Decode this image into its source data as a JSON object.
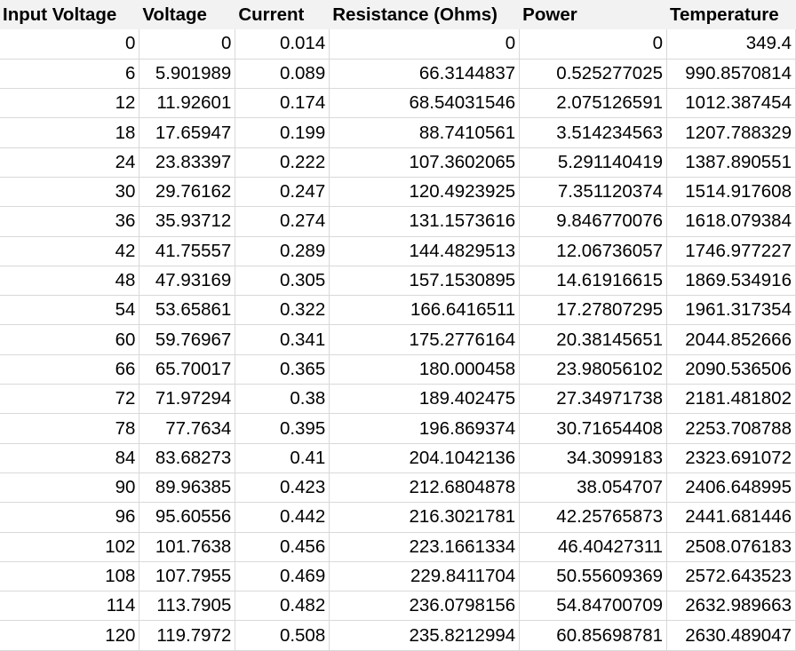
{
  "table": {
    "headers": [
      "Input Voltage",
      "Voltage",
      "Current",
      "Resistance (Ohms)",
      "Power",
      "Temperature"
    ],
    "rows": [
      [
        "0",
        "0",
        "0.014",
        "0",
        "0",
        "349.4"
      ],
      [
        "6",
        "5.901989",
        "0.089",
        "66.3144837",
        "0.525277025",
        "990.8570814"
      ],
      [
        "12",
        "11.92601",
        "0.174",
        "68.54031546",
        "2.075126591",
        "1012.387454"
      ],
      [
        "18",
        "17.65947",
        "0.199",
        "88.7410561",
        "3.514234563",
        "1207.788329"
      ],
      [
        "24",
        "23.83397",
        "0.222",
        "107.3602065",
        "5.291140419",
        "1387.890551"
      ],
      [
        "30",
        "29.76162",
        "0.247",
        "120.4923925",
        "7.351120374",
        "1514.917608"
      ],
      [
        "36",
        "35.93712",
        "0.274",
        "131.1573616",
        "9.846770076",
        "1618.079384"
      ],
      [
        "42",
        "41.75557",
        "0.289",
        "144.4829513",
        "12.06736057",
        "1746.977227"
      ],
      [
        "48",
        "47.93169",
        "0.305",
        "157.1530895",
        "14.61916615",
        "1869.534916"
      ],
      [
        "54",
        "53.65861",
        "0.322",
        "166.6416511",
        "17.27807295",
        "1961.317354"
      ],
      [
        "60",
        "59.76967",
        "0.341",
        "175.2776164",
        "20.38145651",
        "2044.852666"
      ],
      [
        "66",
        "65.70017",
        "0.365",
        "180.000458",
        "23.98056102",
        "2090.536506"
      ],
      [
        "72",
        "71.97294",
        "0.38",
        "189.402475",
        "27.34971738",
        "2181.481802"
      ],
      [
        "78",
        "77.7634",
        "0.395",
        "196.869374",
        "30.71654408",
        "2253.708788"
      ],
      [
        "84",
        "83.68273",
        "0.41",
        "204.1042136",
        "34.3099183",
        "2323.691072"
      ],
      [
        "90",
        "89.96385",
        "0.423",
        "212.6804878",
        "38.054707",
        "2406.648995"
      ],
      [
        "96",
        "95.60556",
        "0.442",
        "216.3021781",
        "42.25765873",
        "2441.681446"
      ],
      [
        "102",
        "101.7638",
        "0.456",
        "223.1661334",
        "46.40427311",
        "2508.076183"
      ],
      [
        "108",
        "107.7955",
        "0.469",
        "229.8411704",
        "50.55609369",
        "2572.643523"
      ],
      [
        "114",
        "113.7905",
        "0.482",
        "236.0798156",
        "54.84700709",
        "2632.989663"
      ],
      [
        "120",
        "119.7972",
        "0.508",
        "235.8212994",
        "60.85698781",
        "2630.489047"
      ]
    ]
  }
}
